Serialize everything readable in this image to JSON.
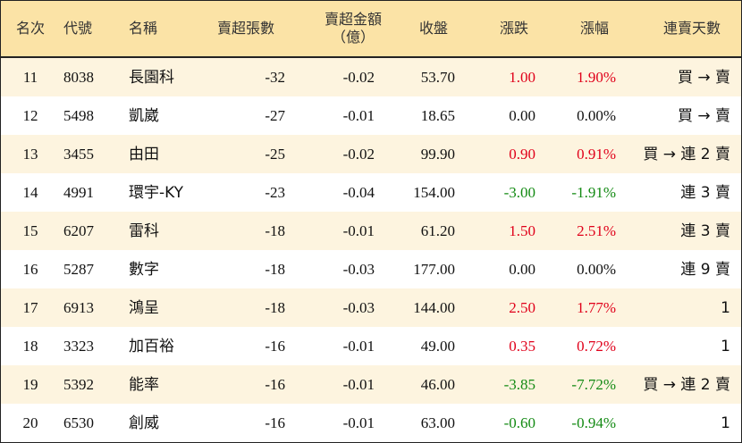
{
  "table": {
    "headers": [
      "名次",
      "代號",
      "名稱",
      "賣超張數",
      "賣超金額\n（億）",
      "收盤",
      "漲跌",
      "漲幅",
      "連賣天數"
    ],
    "rows": [
      [
        "11",
        "8038",
        "長園科",
        "-32",
        "-0.02",
        "53.70",
        "1.00",
        "1.90%",
        "買 → 賣"
      ],
      [
        "12",
        "5498",
        "凱崴",
        "-27",
        "-0.01",
        "18.65",
        "0.00",
        "0.00%",
        "買 → 賣"
      ],
      [
        "13",
        "3455",
        "由田",
        "-25",
        "-0.02",
        "99.90",
        "0.90",
        "0.91%",
        "買 → 連 2 賣"
      ],
      [
        "14",
        "4991",
        "環宇-KY",
        "-23",
        "-0.04",
        "154.00",
        "-3.00",
        "-1.91%",
        "連 3 賣"
      ],
      [
        "15",
        "6207",
        "雷科",
        "-18",
        "-0.01",
        "61.20",
        "1.50",
        "2.51%",
        "連 3 賣"
      ],
      [
        "16",
        "5287",
        "數字",
        "-18",
        "-0.03",
        "177.00",
        "0.00",
        "0.00%",
        "連 9 賣"
      ],
      [
        "17",
        "6913",
        "鴻呈",
        "-18",
        "-0.03",
        "144.00",
        "2.50",
        "1.77%",
        "1"
      ],
      [
        "18",
        "3323",
        "加百裕",
        "-16",
        "-0.01",
        "49.00",
        "0.35",
        "0.72%",
        "1"
      ],
      [
        "19",
        "5392",
        "能率",
        "-16",
        "-0.01",
        "46.00",
        "-3.85",
        "-7.72%",
        "買 → 連 2 賣"
      ],
      [
        "20",
        "6530",
        "創威",
        "-16",
        "-0.01",
        "63.00",
        "-0.60",
        "-0.94%",
        "1"
      ]
    ],
    "colors": {
      "up": "#e0001a",
      "down": "#138a13",
      "flat": "#111111"
    }
  }
}
